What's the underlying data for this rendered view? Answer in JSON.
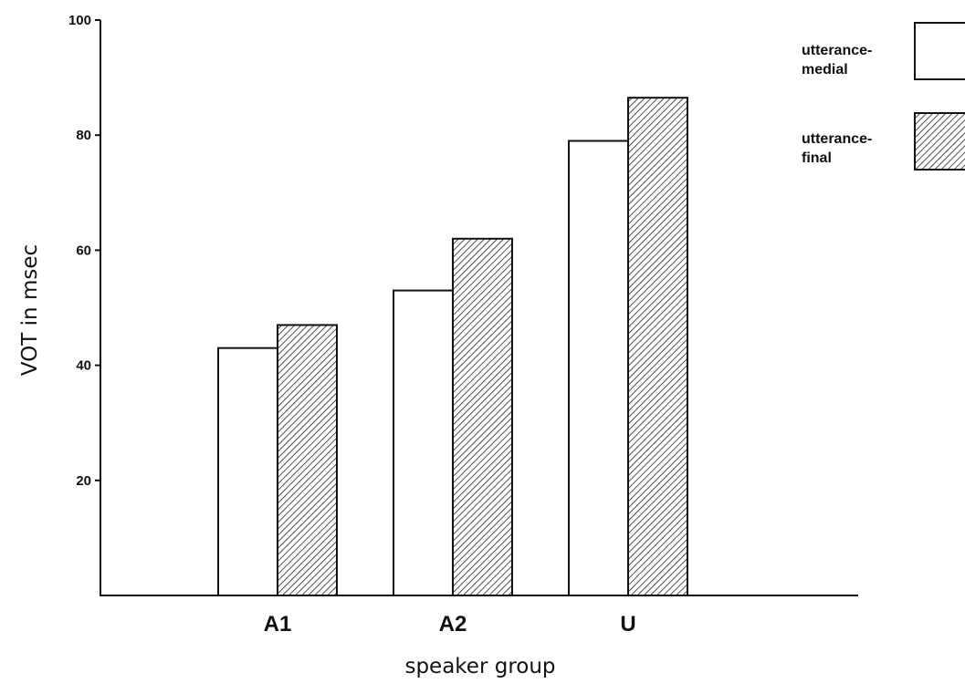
{
  "chart_data": {
    "type": "bar",
    "categories": [
      "A1",
      "A2",
      "U"
    ],
    "series": [
      {
        "name": "utterance-medial",
        "values": [
          43,
          53,
          79
        ],
        "fill": "white"
      },
      {
        "name": "utterance-final",
        "values": [
          47,
          62,
          86.5
        ],
        "fill": "hatched"
      }
    ],
    "legend_lines": [
      [
        "utterance-",
        "medial"
      ],
      [
        "utterance-",
        "final"
      ]
    ],
    "legend_position": "top-right",
    "xlabel": "speaker group",
    "ylabel": "VOT in msec",
    "ylim": [
      0,
      100
    ],
    "yticks": [
      20,
      40,
      60,
      80,
      100
    ],
    "grid": false
  }
}
